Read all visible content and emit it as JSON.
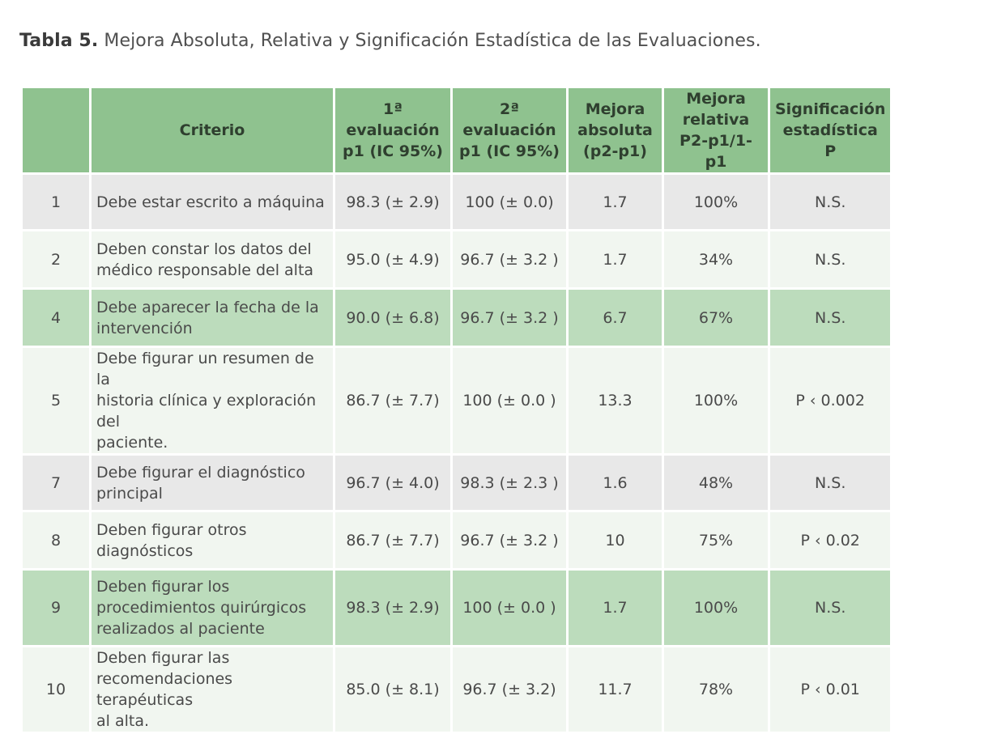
{
  "caption": {
    "lead": "Tabla 5.",
    "text": " Mejora Absoluta, Relativa y Significación Estadística de las Evaluaciones."
  },
  "header": {
    "num": "",
    "criterio": "Criterio",
    "eval1": [
      "1ª evaluación",
      "p1 (IC 95%)"
    ],
    "eval2": [
      "2ª evaluación",
      "p1 (IC 95%)"
    ],
    "absoluta": [
      "Mejora",
      "absoluta",
      "(p2-p1)"
    ],
    "relativa": [
      "Mejora",
      "relativa",
      "P2-p1/1-p1"
    ],
    "signif": [
      "Significación",
      "estadística",
      "P"
    ]
  },
  "rows": [
    {
      "num": "1",
      "lines": [
        "Debe estar escrito a máquina"
      ],
      "eval1": "98.3 (± 2.9)",
      "eval2": "100 (± 0.0)",
      "absoluta": "1.7",
      "relativa": "100%",
      "signif": "N.S."
    },
    {
      "num": "2",
      "lines": [
        "Deben constar los datos del",
        "médico responsable del alta"
      ],
      "eval1": "95.0 (± 4.9)",
      "eval2": "96.7 (± 3.2 )",
      "absoluta": "1.7",
      "relativa": "34%",
      "signif": "N.S."
    },
    {
      "num": "4",
      "lines": [
        "Debe aparecer la fecha de la",
        "intervención"
      ],
      "eval1": "90.0 (± 6.8)",
      "eval2": "96.7 (± 3.2 )",
      "absoluta": "6.7",
      "relativa": "67%",
      "signif": "N.S."
    },
    {
      "num": "5",
      "lines": [
        "Debe figurar un resumen de la",
        "historia clínica y exploración del",
        "paciente."
      ],
      "eval1": "86.7 (± 7.7)",
      "eval2": "100 (± 0.0 )",
      "absoluta": "13.3",
      "relativa": "100%",
      "signif": "P ‹ 0.002"
    },
    {
      "num": "7",
      "lines": [
        "Debe figurar el diagnóstico",
        "principal"
      ],
      "eval1": "96.7 (± 4.0)",
      "eval2": "98.3 (± 2.3 )",
      "absoluta": "1.6",
      "relativa": "48%",
      "signif": "N.S."
    },
    {
      "num": "8",
      "lines": [
        "Deben figurar otros",
        "diagnósticos"
      ],
      "eval1": "86.7 (± 7.7)",
      "eval2": "96.7 (± 3.2 )",
      "absoluta": "10",
      "relativa": "75%",
      "signif": "P ‹ 0.02"
    },
    {
      "num": "9",
      "lines": [
        "Deben figurar los",
        "procedimientos quirúrgicos",
        "realizados al paciente"
      ],
      "eval1": "98.3 (± 2.9)",
      "eval2": "100 (± 0.0 )",
      "absoluta": "1.7",
      "relativa": "100%",
      "signif": "N.S."
    },
    {
      "num": "10",
      "lines": [
        "Deben figurar las",
        "recomendaciones terapéuticas",
        "al alta."
      ],
      "eval1": "85.0 (± 8.1)",
      "eval2": "96.7 (± 3.2)",
      "absoluta": "11.7",
      "relativa": "78%",
      "signif": "P ‹ 0.01"
    }
  ]
}
